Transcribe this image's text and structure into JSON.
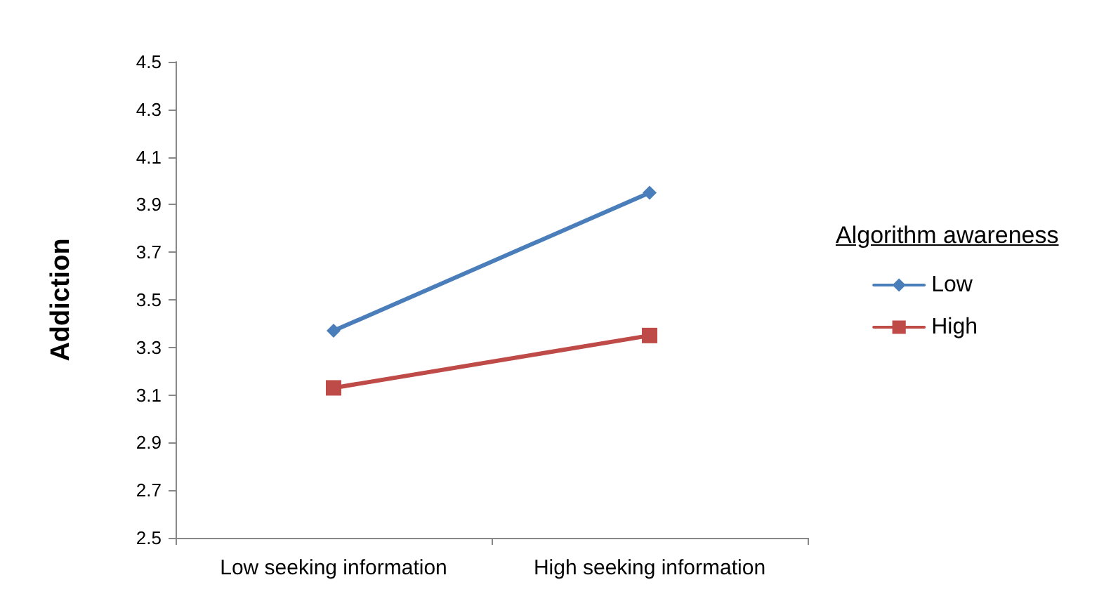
{
  "chart_data": {
    "type": "line",
    "ylabel": "Addiction",
    "legend_title": "Algorithm awareness",
    "categories": [
      "Low seeking information",
      "High seeking information"
    ],
    "series": [
      {
        "name": "Low",
        "color": "#4a7ebb",
        "values": [
          3.37,
          3.95
        ],
        "marker": "diamond"
      },
      {
        "name": "High",
        "color": "#be4b48",
        "values": [
          3.13,
          3.35
        ],
        "marker": "square"
      }
    ],
    "ylim": [
      2.5,
      4.5
    ],
    "yticks": [
      2.5,
      2.7,
      2.9,
      3.1,
      3.3,
      3.5,
      3.7,
      3.9,
      4.1,
      4.3,
      4.5
    ],
    "grid": false,
    "legend": "right",
    "line_style": "solid"
  }
}
